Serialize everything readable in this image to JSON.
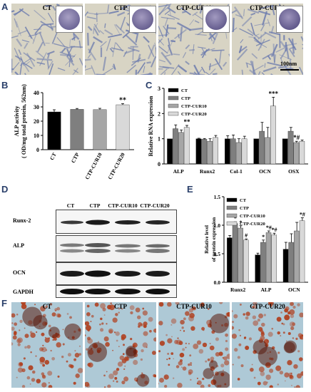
{
  "panels": {
    "a": "A",
    "b": "B",
    "c": "C",
    "d": "D",
    "e": "E",
    "f": "F"
  },
  "panel_a": {
    "groups": [
      "CT",
      "CTP",
      "CTP-CUR10",
      "CTP-CUR20"
    ],
    "scale_bar": "100nm",
    "stain_color": "#6d7cae",
    "background_color": "#d8d4c4"
  },
  "panel_d": {
    "columns": [
      "CT",
      "CTP",
      "CTP-CUR10",
      "CTP-CUR20"
    ],
    "rows": [
      "Runx-2",
      "ALP",
      "OCN",
      "GAPDH"
    ]
  },
  "panel_f": {
    "groups": [
      "CT",
      "CTP",
      "CTP-CUR10",
      "CTP-CUR20"
    ],
    "stain_color": "#b0401f",
    "background_color": "#aec9d6"
  },
  "chart_data": [
    {
      "id": "B",
      "type": "bar",
      "categories": [
        "CT",
        "CTP",
        "CTP-CUR10",
        "CTP-CUR20"
      ],
      "values": [
        26.5,
        28.3,
        28.1,
        31.5
      ],
      "errors": [
        1.5,
        0.6,
        0.9,
        0.8
      ],
      "colors": [
        "#000000",
        "#7f7f7f",
        "#a6a6a6",
        "#d9d9d9"
      ],
      "annotations": [
        {
          "category": "CTP-CUR20",
          "text": "**"
        }
      ],
      "ylabel": "ALP activity",
      "ylabel2": "( OD/mg total protein, 562nm)",
      "ylim": [
        0,
        40
      ],
      "yticks": [
        0,
        10,
        20,
        30,
        40
      ]
    },
    {
      "id": "C",
      "type": "bar",
      "categories": [
        "ALP",
        "Runx2",
        "Col-1",
        "OCN",
        "OSX"
      ],
      "series": [
        {
          "name": "CT",
          "color": "#000000",
          "values": [
            1.0,
            1.0,
            1.0,
            1.0,
            1.0
          ],
          "errors": [
            0.0,
            0.02,
            0.12,
            0.0,
            0.0
          ]
        },
        {
          "name": "CTP",
          "color": "#7f7f7f",
          "values": [
            1.4,
            0.98,
            1.0,
            1.3,
            1.3
          ],
          "errors": [
            0.15,
            0.03,
            0.15,
            0.35,
            0.15
          ]
        },
        {
          "name": "CTP-CUR10",
          "color": "#a6a6a6",
          "values": [
            1.25,
            0.9,
            0.85,
            1.05,
            0.85
          ],
          "errors": [
            0.1,
            0.1,
            0.15,
            0.4,
            0.05
          ]
        },
        {
          "name": "CTP-CUR20",
          "color": "#d9d9d9",
          "values": [
            1.45,
            1.05,
            1.0,
            2.3,
            0.9
          ],
          "errors": [
            0.08,
            0.08,
            0.1,
            0.35,
            0.05
          ]
        }
      ],
      "annotations": [
        {
          "category": "ALP",
          "series": "CTP-CUR20",
          "text": "**"
        },
        {
          "category": "OCN",
          "series": "CTP-CUR20",
          "text": "***"
        },
        {
          "category": "OSX",
          "series": "CTP-CUR10",
          "text": "*#"
        }
      ],
      "ylabel": "Relative RNA expression",
      "ylim": [
        0,
        3
      ],
      "yticks": [
        0,
        1,
        2,
        3
      ],
      "legend": "top-left"
    },
    {
      "id": "E",
      "type": "bar",
      "categories": [
        "Runx2",
        "ALP",
        "OCN"
      ],
      "series": [
        {
          "name": "CT",
          "color": "#000000",
          "values": [
            0.78,
            0.48,
            0.58
          ],
          "errors": [
            0.04,
            0.03,
            0.12
          ]
        },
        {
          "name": "CTP",
          "color": "#7f7f7f",
          "values": [
            1.03,
            0.7,
            0.7
          ],
          "errors": [
            0.03,
            0.04,
            0.15
          ]
        },
        {
          "name": "CTP-CUR10",
          "color": "#a6a6a6",
          "values": [
            0.95,
            0.87,
            0.9
          ],
          "errors": [
            0.04,
            0.03,
            0.15
          ]
        },
        {
          "name": "CTP-CUR20",
          "color": "#d9d9d9",
          "values": [
            0.74,
            0.83,
            1.08
          ],
          "errors": [
            0.02,
            0.03,
            0.05
          ]
        }
      ],
      "annotations": [
        {
          "category": "Runx2",
          "series": "CTP",
          "text": "*"
        },
        {
          "category": "Runx2",
          "series": "CTP-CUR10",
          "text": "*"
        },
        {
          "category": "Runx2",
          "series": "CTP-CUR20",
          "text": "#"
        },
        {
          "category": "ALP",
          "series": "CTP",
          "text": "*"
        },
        {
          "category": "ALP",
          "series": "CTP-CUR10",
          "text": "*#"
        },
        {
          "category": "ALP",
          "series": "CTP-CUR20",
          "text": "*#"
        },
        {
          "category": "OCN",
          "series": "CTP-CUR20",
          "text": "*#"
        }
      ],
      "ylabel": "Relative level",
      "ylabel2": "of protein expression",
      "ylim": [
        0,
        1.5
      ],
      "yticks": [
        0.0,
        0.5,
        1.0,
        1.5
      ],
      "yticklabels": [
        "0.0",
        "0.5",
        "1.0",
        "1.5"
      ],
      "legend": "top-left"
    }
  ]
}
